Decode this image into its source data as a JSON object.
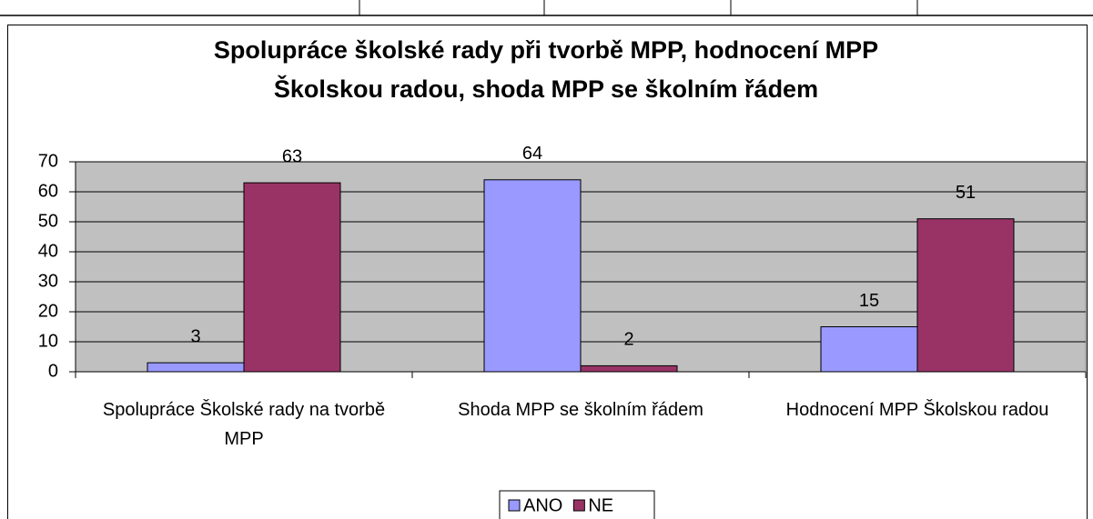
{
  "chart_data": {
    "type": "bar",
    "title": "Spolupráce školské rady při tvorbě MPP, hodnocení MPP\nŠkolskou radou, shoda MPP se školním řádem",
    "categories": [
      "Spolupráce Školské rady na tvorbě MPP",
      "Shoda MPP se školním řádem",
      "Hodnocení MPP Školskou radou"
    ],
    "series": [
      {
        "name": "ANO",
        "color": "#9999ff",
        "values": [
          3,
          64,
          15
        ]
      },
      {
        "name": "NE",
        "color": "#993366",
        "values": [
          63,
          2,
          51
        ]
      }
    ],
    "ylim": [
      0,
      70
    ],
    "yticks": [
      0,
      10,
      20,
      30,
      40,
      50,
      60,
      70
    ],
    "grid": true,
    "legend": "bottom"
  }
}
